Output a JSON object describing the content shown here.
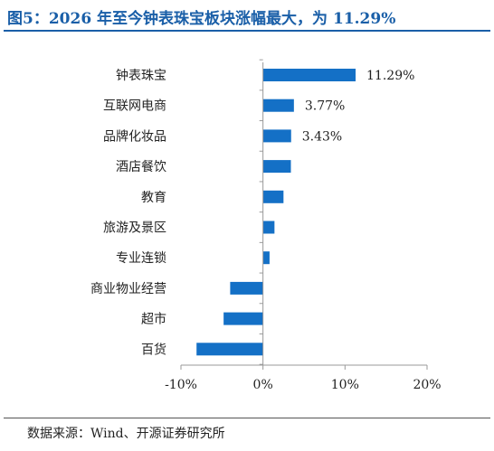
{
  "header": {
    "title": "图5：2026 年至今钟表珠宝板块涨幅最大，为 11.29%"
  },
  "footer": {
    "source": "数据来源：Wind、开源证券研究所"
  },
  "colors": {
    "bar": "#1470c6",
    "title": "#1a5fa8"
  },
  "chart_data": {
    "type": "bar",
    "orientation": "horizontal",
    "title": "",
    "xlabel": "",
    "ylabel": "",
    "categories": [
      "钟表珠宝",
      "互联网电商",
      "品牌化妆品",
      "酒店餐饮",
      "教育",
      "旅游及景区",
      "专业连锁",
      "商业物业经营",
      "超市",
      "百货"
    ],
    "values": [
      11.29,
      3.77,
      3.43,
      3.4,
      2.5,
      1.4,
      0.8,
      -4.0,
      -4.8,
      -8.1
    ],
    "data_labels": [
      "11.29%",
      "3.77%",
      "3.43%",
      "",
      "",
      "",
      "",
      "",
      "",
      ""
    ],
    "xlim": [
      -10,
      20
    ],
    "xticks": [
      -10,
      0,
      10,
      20
    ],
    "xtick_labels": [
      "-10%",
      "0%",
      "10%",
      "20%"
    ],
    "grid": false,
    "legend": false
  }
}
